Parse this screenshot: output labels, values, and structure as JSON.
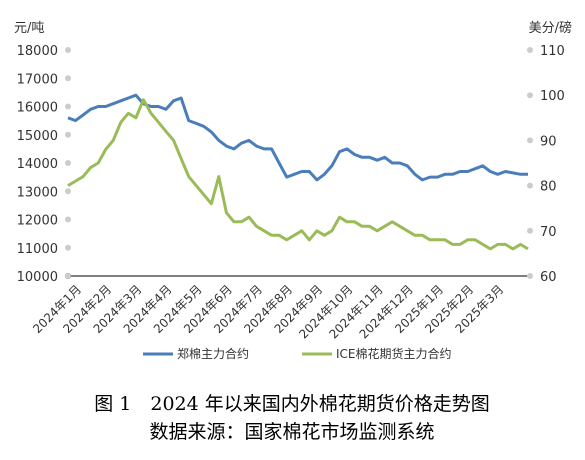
{
  "chart_data": {
    "type": "line",
    "title": "图 1　2024 年以来国内外棉花期货价格走势图",
    "subtitle": "数据来源：国家棉花市场监测系统",
    "y_label": "元/吨",
    "y2_label": "美分/磅",
    "categories": [
      "2024年1月",
      null,
      null,
      null,
      "2024年2月",
      null,
      null,
      null,
      "2024年3月",
      null,
      null,
      null,
      "2024年4月",
      null,
      null,
      null,
      "2024年5月",
      null,
      null,
      null,
      "2024年6月",
      null,
      null,
      null,
      "2024年7月",
      null,
      null,
      null,
      "2024年8月",
      null,
      null,
      null,
      "2024年9月",
      null,
      null,
      null,
      "2024年10月",
      null,
      null,
      null,
      "2024年11月",
      null,
      null,
      null,
      "2024年12月",
      null,
      null,
      null,
      "2025年1月",
      null,
      null,
      null,
      "2025年2月",
      null,
      null,
      null,
      "2025年3月",
      null,
      null,
      null,
      null,
      null
    ],
    "series": [
      {
        "name": "郑棉主力合约",
        "color": "#4a7ebb",
        "axis": "y",
        "values": [
          15600,
          15500,
          15700,
          15900,
          16000,
          16000,
          16100,
          16200,
          16300,
          16400,
          16100,
          16000,
          16000,
          15900,
          16200,
          16300,
          15500,
          15400,
          15300,
          15100,
          14800,
          14600,
          14500,
          14700,
          14800,
          14600,
          14500,
          14500,
          14000,
          13500,
          13600,
          13700,
          13700,
          13400,
          13600,
          13900,
          14400,
          14500,
          14300,
          14200,
          14200,
          14100,
          14200,
          14000,
          14000,
          13900,
          13600,
          13400,
          13500,
          13500,
          13600,
          13600,
          13700,
          13700,
          13800,
          13900,
          13700,
          13600,
          13700,
          13650,
          13600,
          13600
        ]
      },
      {
        "name": "ICE棉花期货主力合约",
        "color": "#9bbb59",
        "axis": "y2",
        "values": [
          80,
          81,
          82,
          84,
          85,
          88,
          90,
          94,
          96,
          95,
          99,
          96,
          94,
          92,
          90,
          86,
          82,
          80,
          78,
          76,
          82,
          74,
          72,
          72,
          73,
          71,
          70,
          69,
          69,
          68,
          69,
          70,
          68,
          70,
          69,
          70,
          73,
          72,
          72,
          71,
          71,
          70,
          71,
          72,
          71,
          70,
          69,
          69,
          68,
          68,
          68,
          67,
          67,
          68,
          68,
          67,
          66,
          67,
          67,
          66,
          67,
          66
        ]
      }
    ],
    "ylim": [
      10000,
      18000
    ],
    "yticks": [
      10000,
      11000,
      12000,
      13000,
      14000,
      15000,
      16000,
      17000,
      18000
    ],
    "y2lim": [
      60,
      110
    ],
    "y2ticks": [
      60,
      70,
      80,
      90,
      100,
      110
    ]
  }
}
